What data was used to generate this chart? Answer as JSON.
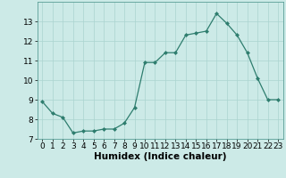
{
  "x": [
    0,
    1,
    2,
    3,
    4,
    5,
    6,
    7,
    8,
    9,
    10,
    11,
    12,
    13,
    14,
    15,
    16,
    17,
    18,
    19,
    20,
    21,
    22,
    23
  ],
  "y": [
    8.9,
    8.3,
    8.1,
    7.3,
    7.4,
    7.4,
    7.5,
    7.5,
    7.8,
    8.6,
    10.9,
    10.9,
    11.4,
    11.4,
    12.3,
    12.4,
    12.5,
    13.4,
    12.9,
    12.3,
    11.4,
    10.1,
    9.0,
    9.0
  ],
  "line_color": "#2e7d6e",
  "marker": "D",
  "marker_size": 2,
  "bg_color": "#cceae7",
  "grid_color": "#aad4d0",
  "xlabel": "Humidex (Indice chaleur)",
  "ylim": [
    7,
    14
  ],
  "xlim": [
    -0.5,
    23.5
  ],
  "yticks": [
    7,
    8,
    9,
    10,
    11,
    12,
    13
  ],
  "xticks": [
    0,
    1,
    2,
    3,
    4,
    5,
    6,
    7,
    8,
    9,
    10,
    11,
    12,
    13,
    14,
    15,
    16,
    17,
    18,
    19,
    20,
    21,
    22,
    23
  ],
  "tick_fontsize": 6.5,
  "xlabel_fontsize": 7.5
}
